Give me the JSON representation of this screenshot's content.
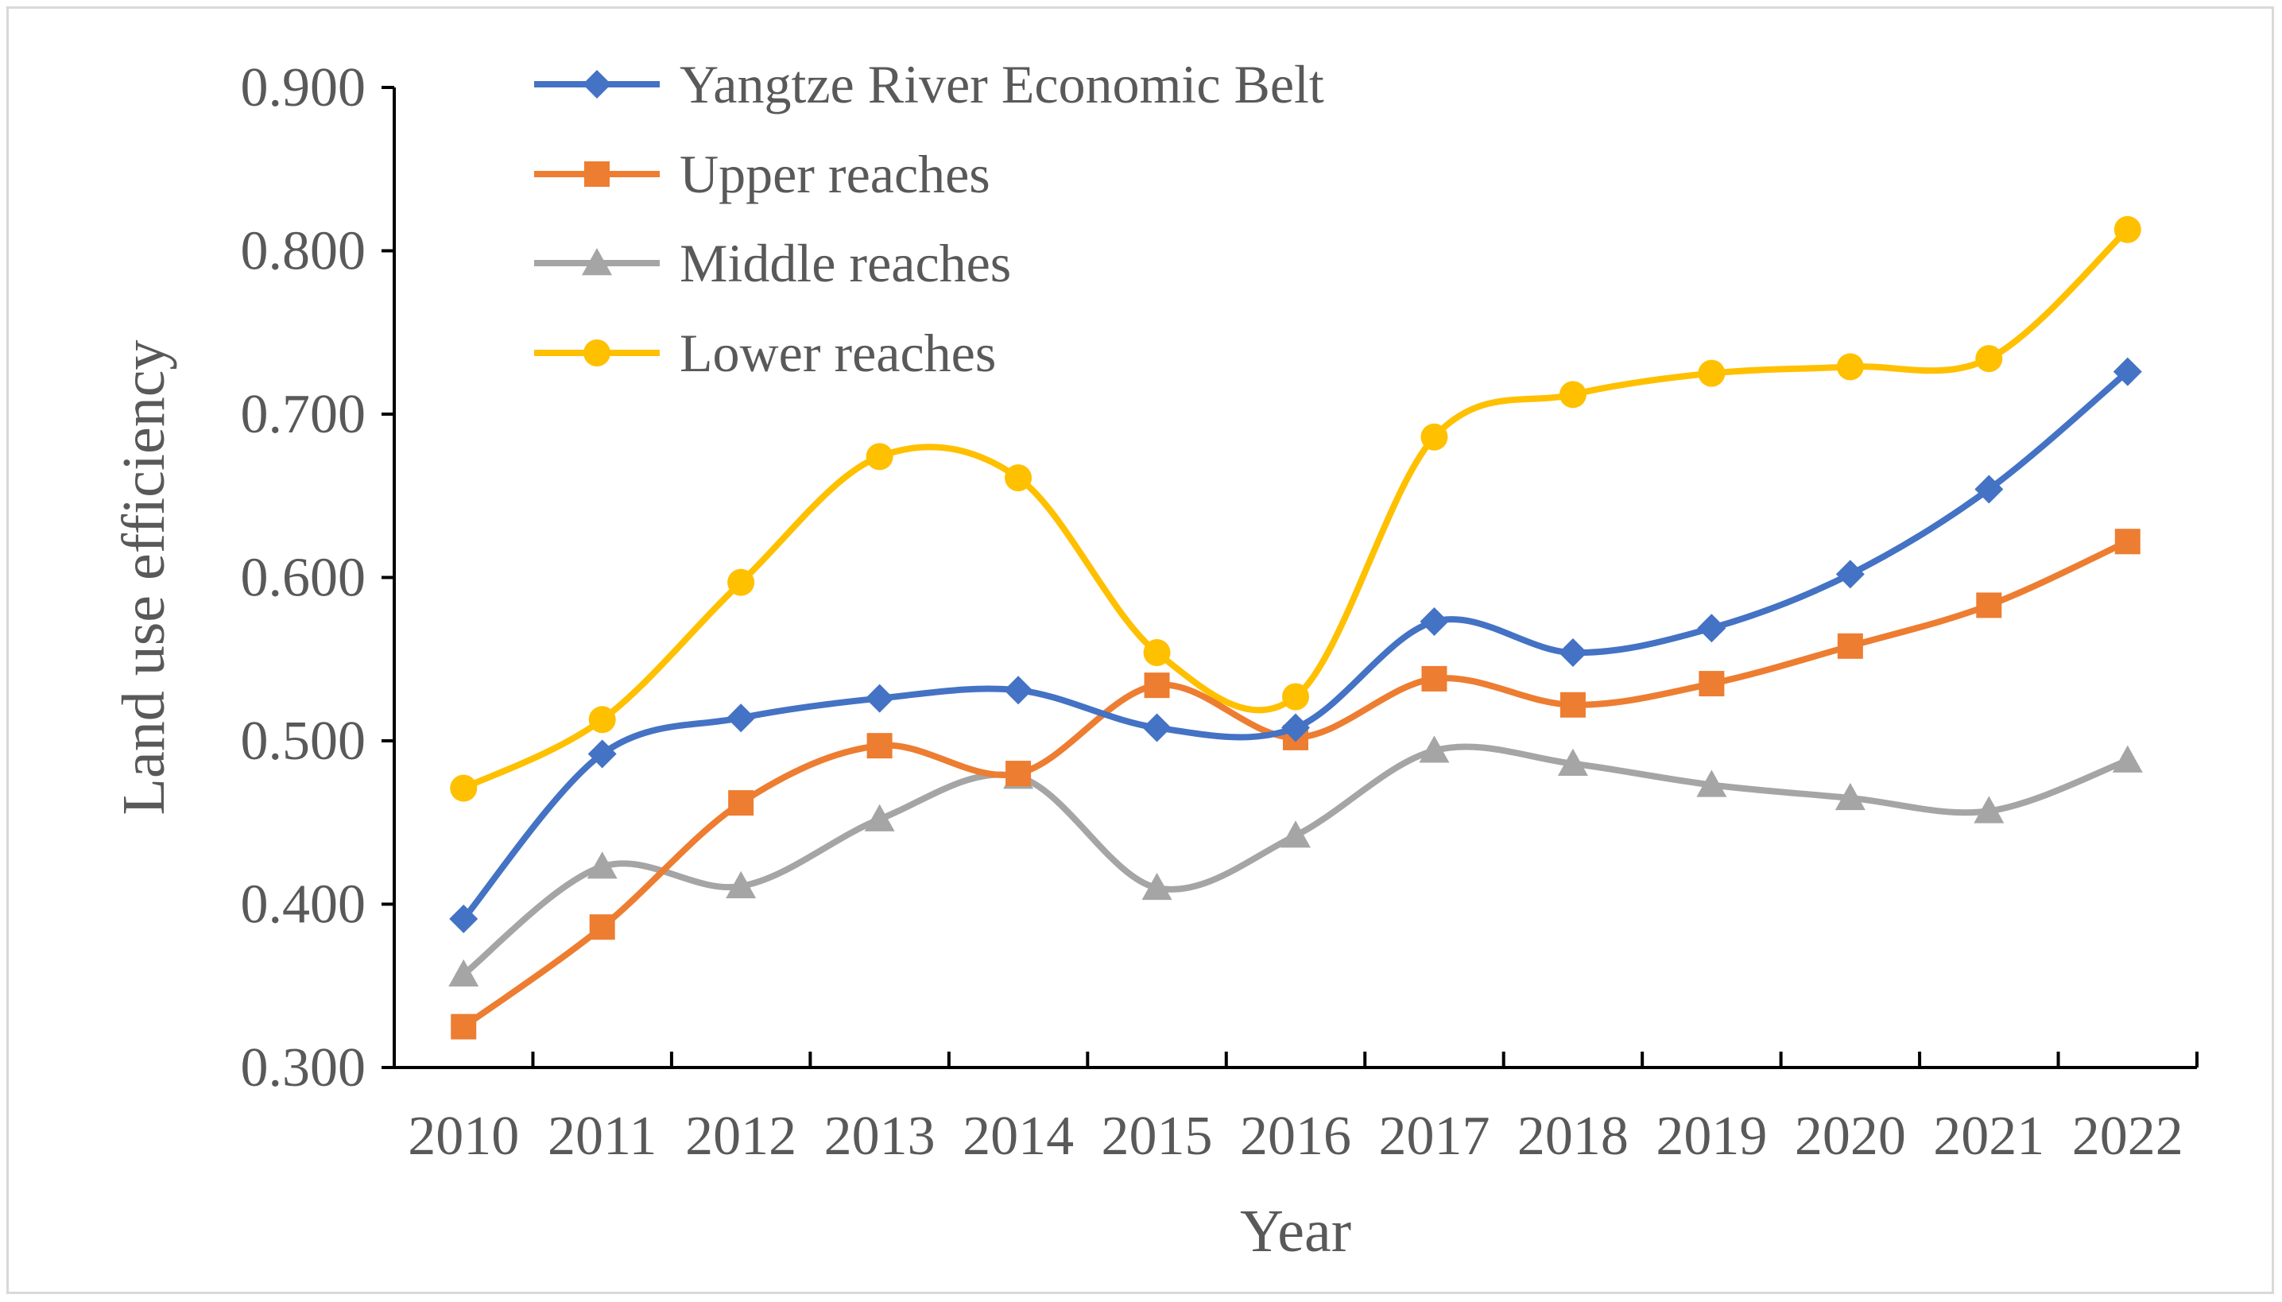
{
  "chart_data": {
    "type": "line",
    "title": "",
    "xlabel": "Year",
    "ylabel": "Land use efficiency",
    "categories": [
      "2010",
      "2011",
      "2012",
      "2013",
      "2014",
      "2015",
      "2016",
      "2017",
      "2018",
      "2019",
      "2020",
      "2021",
      "2022"
    ],
    "ylim": [
      0.3,
      0.9
    ],
    "yticks": [
      0.3,
      0.4,
      0.5,
      0.6,
      0.7,
      0.8,
      0.9
    ],
    "ytick_labels": [
      "0.300",
      "0.400",
      "0.500",
      "0.600",
      "0.700",
      "0.800",
      "0.900"
    ],
    "grid": false,
    "smooth": true,
    "legend_position": "top-left",
    "series": [
      {
        "name": "Yangtze River Economic Belt",
        "marker": "diamond",
        "color": "#4472c4",
        "values": [
          0.391,
          0.492,
          0.514,
          0.526,
          0.531,
          0.508,
          0.508,
          0.573,
          0.554,
          0.569,
          0.602,
          0.654,
          0.726
        ]
      },
      {
        "name": "Upper reaches",
        "marker": "square",
        "color": "#ed7d31",
        "values": [
          0.325,
          0.386,
          0.462,
          0.497,
          0.48,
          0.534,
          0.502,
          0.538,
          0.522,
          0.535,
          0.558,
          0.583,
          0.622
        ]
      },
      {
        "name": "Middle reaches",
        "marker": "triangle",
        "color": "#a5a5a5",
        "values": [
          0.357,
          0.423,
          0.411,
          0.452,
          0.478,
          0.41,
          0.442,
          0.494,
          0.486,
          0.473,
          0.465,
          0.457,
          0.488
        ]
      },
      {
        "name": "Lower reaches",
        "marker": "circle",
        "color": "#ffc000",
        "values": [
          0.471,
          0.513,
          0.597,
          0.674,
          0.661,
          0.554,
          0.527,
          0.686,
          0.712,
          0.725,
          0.729,
          0.734,
          0.813
        ]
      }
    ]
  }
}
